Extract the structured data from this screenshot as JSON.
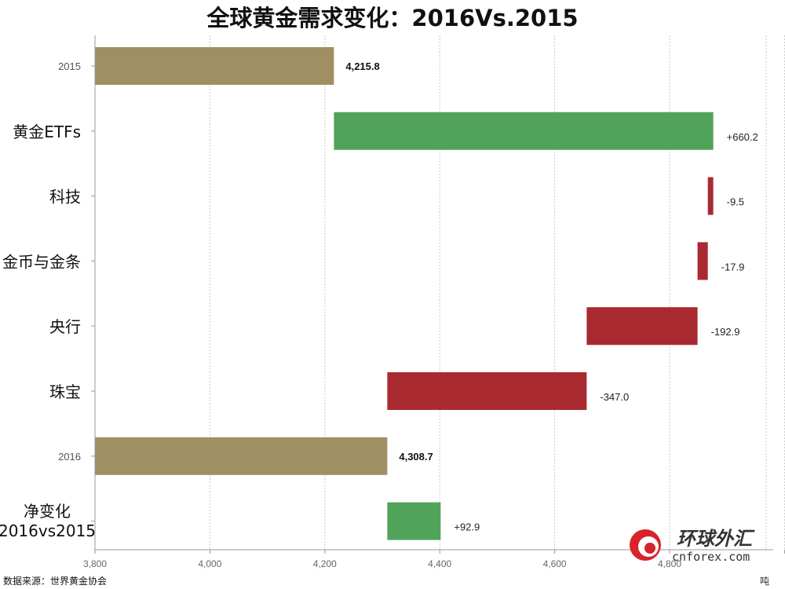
{
  "chart_data": {
    "type": "bar",
    "subtype": "waterfall-horizontal",
    "title": "全球黄金需求变化：2016Vs.2015",
    "xlim": [
      3800,
      4800
    ],
    "x_ticks": [
      "3,800",
      "4,000",
      "4,200",
      "4,400",
      "4,600",
      "4,800"
    ],
    "grid": true,
    "bars": [
      {
        "category": "2015",
        "start": 3800,
        "end": 4215.8,
        "label": "4,215.8",
        "kind": "total",
        "label_style": "small"
      },
      {
        "category": "黄金ETFs",
        "start": 4215.8,
        "end": 4876.0,
        "label": "+660.2",
        "kind": "increase",
        "label_style": "large"
      },
      {
        "category": "科技",
        "start": 4866.5,
        "end": 4876.0,
        "label": "-9.5",
        "kind": "decrease",
        "label_style": "large"
      },
      {
        "category": "金币与金条",
        "start": 4848.6,
        "end": 4866.5,
        "label": "-17.9",
        "kind": "decrease",
        "label_style": "large"
      },
      {
        "category": "央行",
        "start": 4655.7,
        "end": 4848.6,
        "label": "-192.9",
        "kind": "decrease",
        "label_style": "large"
      },
      {
        "category": "珠宝",
        "start": 4308.7,
        "end": 4655.7,
        "label": "-347.0",
        "kind": "decrease",
        "label_style": "large"
      },
      {
        "category": "2016",
        "start": 3800,
        "end": 4308.7,
        "label": "4,308.7",
        "kind": "total",
        "label_style": "small"
      },
      {
        "category": "净变化\n2016vs2015",
        "start": 4308.7,
        "end": 4401.6,
        "label": "+92.9",
        "kind": "increase",
        "label_style": "large"
      }
    ],
    "colors": {
      "total": "#a08f63",
      "increase": "#52a35a",
      "decrease": "#a82a30",
      "grid": "#c8c8c8"
    }
  },
  "footer": {
    "source": "数据来源：世界黄金协会",
    "unit": "吨"
  },
  "logo": {
    "chinese": "环球外汇",
    "english": "cnforex.com",
    "icon": "cnforex-logo-icon"
  }
}
